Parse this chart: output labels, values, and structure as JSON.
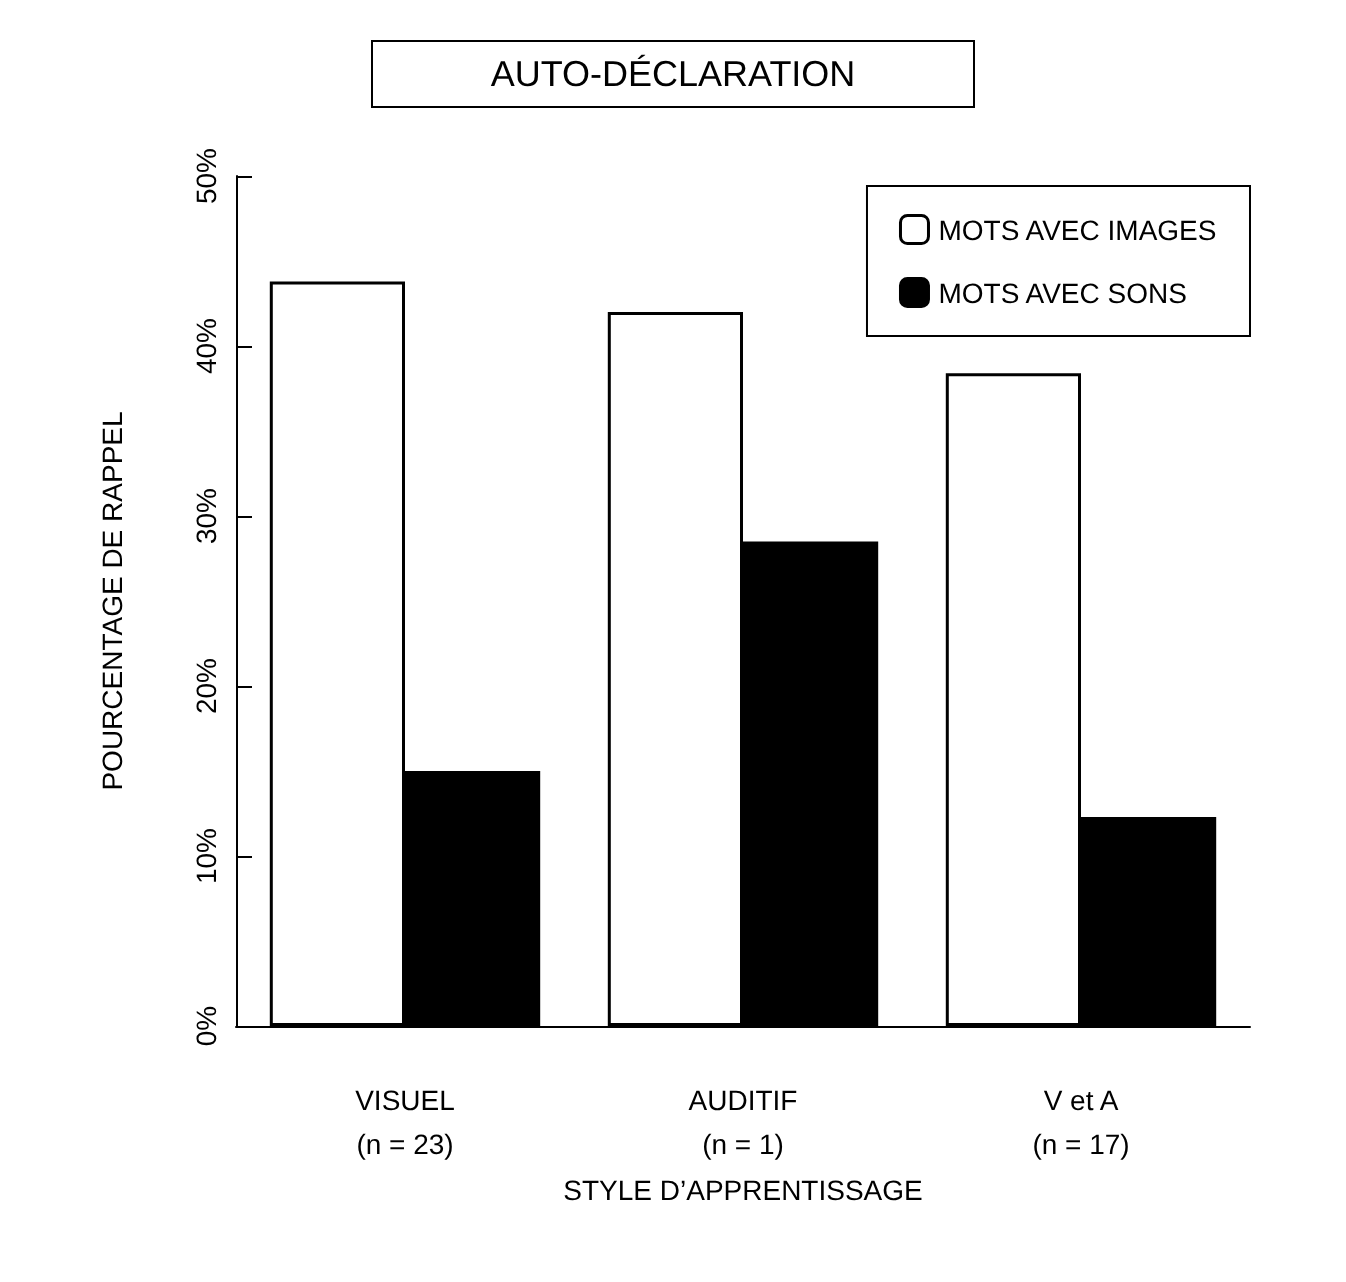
{
  "chart_data": {
    "type": "bar",
    "title": "AUTO-DÉCLARATION",
    "xlabel": "STYLE D’APPRENTISSAGE",
    "ylabel": "POURCENTAGE DE RAPPEL",
    "categories": [
      "VISUEL\n(n = 23)",
      "AUDITIF\n(n = 1)",
      "V et A\n(n = 17)"
    ],
    "series": [
      {
        "name": "MOTS AVEC IMAGES",
        "color": "#ffffff",
        "values": [
          43.8,
          42.0,
          38.4
        ]
      },
      {
        "name": "MOTS AVEC SONS",
        "color": "#000000",
        "values": [
          15.0,
          28.5,
          12.3
        ]
      }
    ],
    "ylim": [
      0,
      50
    ],
    "yticks": [
      {
        "value": 0,
        "label": "0%"
      },
      {
        "value": 10,
        "label": "10%"
      },
      {
        "value": 20,
        "label": "20%"
      },
      {
        "value": 30,
        "label": "30%"
      },
      {
        "value": 40,
        "label": "40%"
      },
      {
        "value": 50,
        "label": "50%"
      }
    ],
    "grid": false,
    "legend": "top right"
  }
}
